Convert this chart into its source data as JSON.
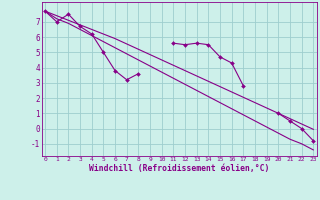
{
  "x": [
    0,
    1,
    2,
    3,
    4,
    5,
    6,
    7,
    8,
    9,
    10,
    11,
    12,
    13,
    14,
    15,
    16,
    17,
    18,
    19,
    20,
    21,
    22,
    23
  ],
  "line_zigzag": [
    7.7,
    7.0,
    7.5,
    6.7,
    6.2,
    5.0,
    3.8,
    3.2,
    3.6,
    null,
    null,
    5.6,
    5.5,
    5.6,
    5.5,
    4.7,
    4.3,
    2.8,
    null,
    null,
    1.0,
    0.5,
    0.0,
    -0.8
  ],
  "line_upper": [
    7.7,
    7.4,
    7.1,
    6.8,
    6.5,
    6.2,
    5.9,
    5.55,
    5.2,
    4.85,
    4.5,
    4.15,
    3.8,
    3.45,
    3.1,
    2.75,
    2.4,
    2.05,
    1.7,
    1.35,
    1.0,
    0.65,
    0.3,
    -0.05
  ],
  "line_lower": [
    7.7,
    7.2,
    6.9,
    6.5,
    6.1,
    5.7,
    5.3,
    4.9,
    4.5,
    4.1,
    3.7,
    3.3,
    2.9,
    2.5,
    2.1,
    1.7,
    1.3,
    0.9,
    0.5,
    0.1,
    -0.3,
    -0.7,
    -1.0,
    -1.4
  ],
  "bg_color": "#cdf0ea",
  "line_color": "#880088",
  "grid_color": "#9ecece",
  "xlabel": "Windchill (Refroidissement éolien,°C)",
  "ytick_labels": [
    "-1",
    "0",
    "1",
    "2",
    "3",
    "4",
    "5",
    "6",
    "7"
  ],
  "ytick_values": [
    -1,
    0,
    1,
    2,
    3,
    4,
    5,
    6,
    7
  ],
  "ylim": [
    -1.8,
    8.3
  ],
  "xlim": [
    -0.3,
    23.3
  ]
}
